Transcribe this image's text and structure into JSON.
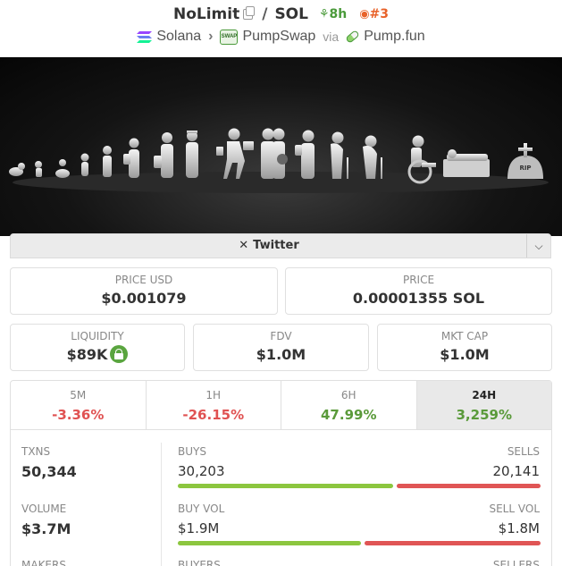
{
  "header": {
    "token_name": "NoLimit",
    "pair": "SOL",
    "age": "8h",
    "rank": "#3",
    "chain": "Solana",
    "dex": "PumpSwap",
    "via": "via",
    "launchpad": "Pump.fun"
  },
  "links": {
    "twitter_label": "Twitter"
  },
  "prices": {
    "price_usd_label": "PRICE USD",
    "price_usd": "$0.001079",
    "price_label": "PRICE",
    "price_native": "0.00001355 SOL"
  },
  "metrics": {
    "liquidity_label": "LIQUIDITY",
    "liquidity": "$89K",
    "fdv_label": "FDV",
    "fdv": "$1.0M",
    "mktcap_label": "MKT CAP",
    "mktcap": "$1.0M"
  },
  "timeframes": [
    {
      "label": "5M",
      "change": "-3.36%"
    },
    {
      "label": "1H",
      "change": "-26.15%"
    },
    {
      "label": "6H",
      "change": "47.99%"
    },
    {
      "label": "24H",
      "change": "3,259%"
    }
  ],
  "active_timeframe": "24H",
  "stats": {
    "txns_label": "TXNS",
    "txns": "50,344",
    "buys_label": "BUYS",
    "buys": "30,203",
    "sells_label": "SELLS",
    "sells": "20,141",
    "buy_share": 0.6,
    "volume_label": "VOLUME",
    "volume": "$3.7M",
    "buy_vol_label": "BUY VOL",
    "buy_vol": "$1.9M",
    "sell_vol_label": "SELL VOL",
    "sell_vol": "$1.8M",
    "buy_vol_share": 0.51,
    "makers_label": "MAKERS",
    "buyers_label": "BUYERS",
    "sellers_label": "SELLERS"
  },
  "colors": {
    "positive": "#5a9a3a",
    "negative": "#e05252",
    "bar_buy": "#8cc63f",
    "bar_sell": "#e05555"
  }
}
